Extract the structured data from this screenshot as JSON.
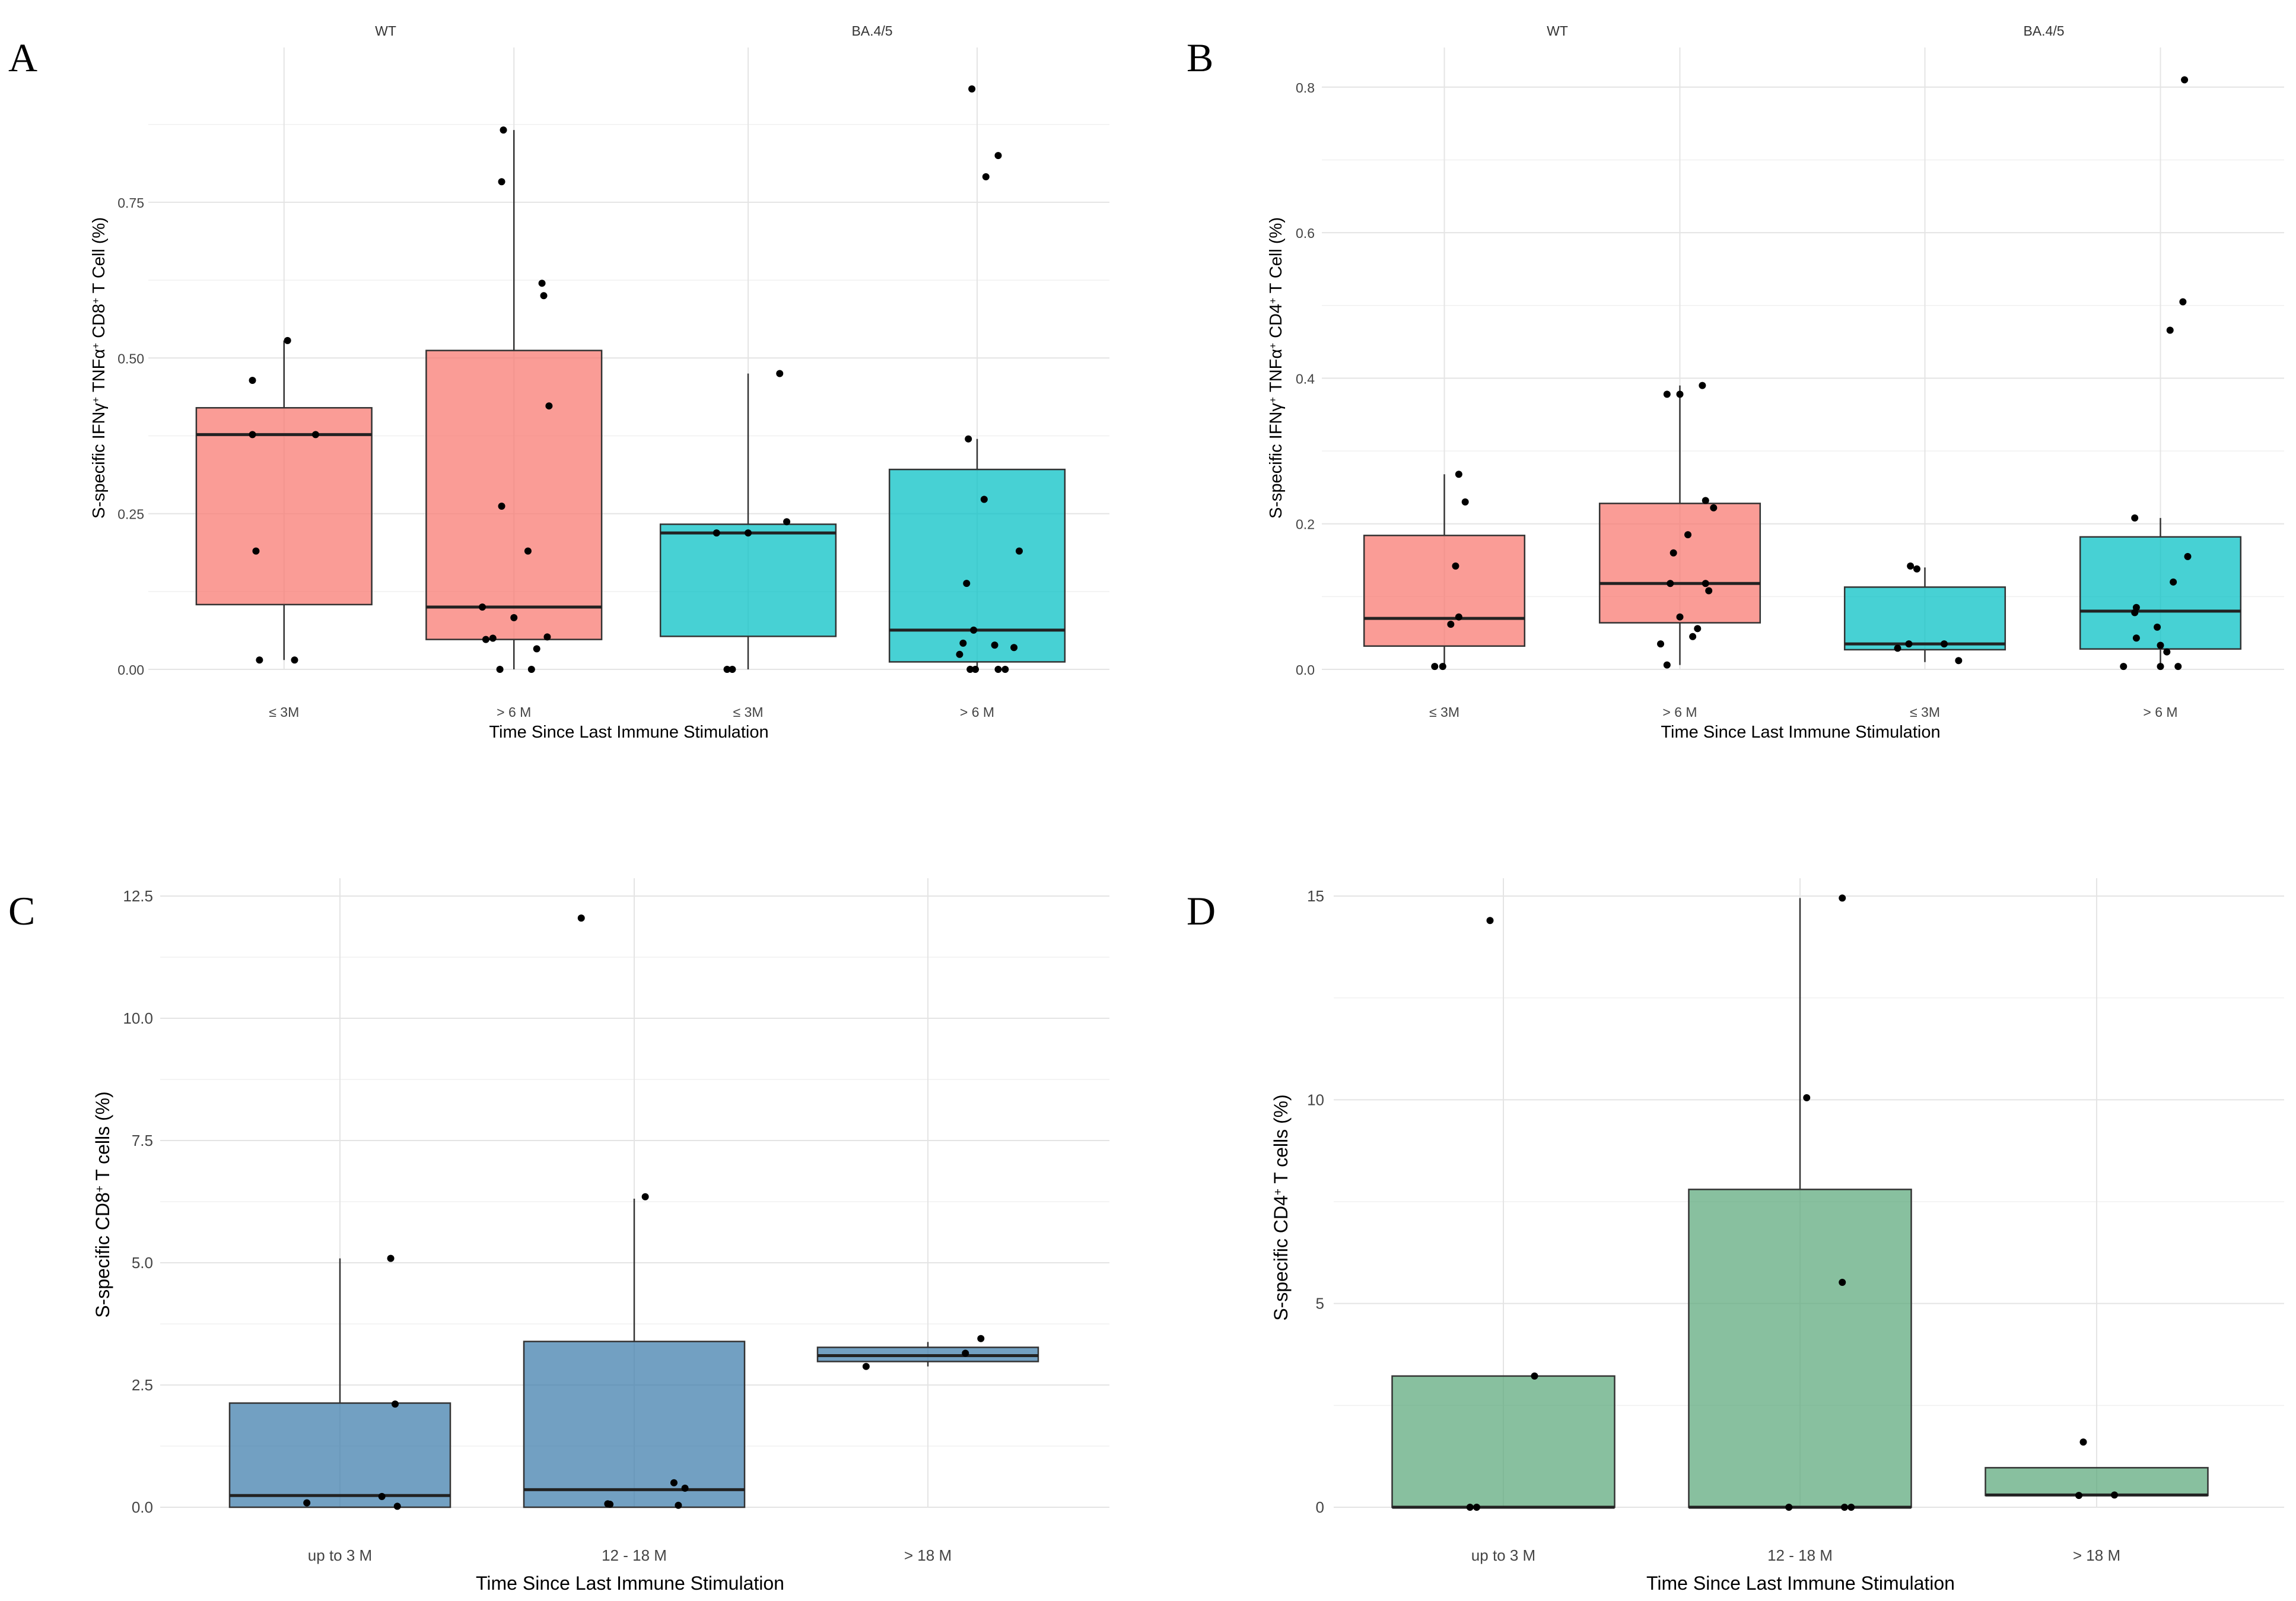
{
  "figure": {
    "xlabel": "Time Since Last Immune Stimulation"
  },
  "colors": {
    "wt": "#f8766d",
    "ba45": "#00bfc4",
    "cd8_panel_c": "#3b7bab",
    "cd4_panel_d": "#5aa77a",
    "point": "#000000",
    "median": "#222222"
  },
  "chart_data": [
    {
      "panel": "A",
      "type": "box",
      "ylabel": "S-specific IFNγ+ TNFα+ CD8+ T Cell (%)",
      "ylabel_parts": {
        "t1": "S-specific IFNγ",
        "s1": "+",
        "t2": " TNFα",
        "s2": "+",
        "t3": " CD8",
        "s3": "+",
        "t4": " T Cell (%)"
      },
      "ylim": [
        0,
        0.97
      ],
      "yticks": [
        0,
        0.25,
        0.5,
        0.75
      ],
      "ytick_labels": [
        "0.00",
        "0.25",
        "0.50",
        "0.75"
      ],
      "facets": [
        {
          "label": "WT",
          "color_key": "wt",
          "categories": [
            "≤ 3M",
            "> 6 M"
          ],
          "boxes": [
            {
              "q1": 0.104,
              "median": 0.377,
              "q3": 0.42,
              "whisker_low": 0.015,
              "whisker_high": 0.528,
              "points": [
                [
                  0.52,
                  0.528
                ],
                [
                  0.32,
                  0.464
                ],
                [
                  0.32,
                  0.377
                ],
                [
                  0.68,
                  0.377
                ],
                [
                  0.34,
                  0.19
                ],
                [
                  0.36,
                  0.015
                ],
                [
                  0.56,
                  0.015
                ]
              ]
            },
            {
              "q1": 0.048,
              "median": 0.1,
              "q3": 0.512,
              "whisker_low": 0.0,
              "whisker_high": 0.866,
              "points": [
                [
                  0.44,
                  0.866
                ],
                [
                  0.43,
                  0.783
                ],
                [
                  0.66,
                  0.62
                ],
                [
                  0.67,
                  0.6
                ],
                [
                  0.7,
                  0.423
                ],
                [
                  0.43,
                  0.262
                ],
                [
                  0.58,
                  0.19
                ],
                [
                  0.32,
                  0.1
                ],
                [
                  0.38,
                  0.05
                ],
                [
                  0.34,
                  0.048
                ],
                [
                  0.5,
                  0.083
                ],
                [
                  0.69,
                  0.052
                ],
                [
                  0.63,
                  0.033
                ],
                [
                  0.42,
                  0.0
                ],
                [
                  0.6,
                  0.0
                ]
              ]
            }
          ]
        },
        {
          "label": "BA.4/5",
          "color_key": "ba45",
          "categories": [
            "≤ 3M",
            "> 6 M"
          ],
          "boxes": [
            {
              "q1": 0.053,
              "median": 0.219,
              "q3": 0.233,
              "whisker_low": 0.0,
              "whisker_high": 0.475,
              "points": [
                [
                  0.68,
                  0.475
                ],
                [
                  0.72,
                  0.237
                ],
                [
                  0.32,
                  0.219
                ],
                [
                  0.5,
                  0.219
                ],
                [
                  0.38,
                  0.0
                ],
                [
                  0.41,
                  0.0
                ]
              ]
            },
            {
              "q1": 0.012,
              "median": 0.063,
              "q3": 0.321,
              "whisker_low": 0.0,
              "whisker_high": 0.37,
              "points": [
                [
                  0.47,
                  0.932
                ],
                [
                  0.55,
                  0.791
                ],
                [
                  0.62,
                  0.825
                ],
                [
                  0.45,
                  0.37
                ],
                [
                  0.54,
                  0.273
                ],
                [
                  0.74,
                  0.19
                ],
                [
                  0.44,
                  0.138
                ],
                [
                  0.48,
                  0.063
                ],
                [
                  0.42,
                  0.042
                ],
                [
                  0.6,
                  0.039
                ],
                [
                  0.71,
                  0.035
                ],
                [
                  0.4,
                  0.024
                ],
                [
                  0.46,
                  0.0
                ],
                [
                  0.49,
                  0.0
                ],
                [
                  0.62,
                  0.0
                ],
                [
                  0.66,
                  0.0
                ]
              ]
            }
          ]
        }
      ]
    },
    {
      "panel": "B",
      "type": "box",
      "ylabel": "S-specific IFNγ+ TNFα+ CD4+ T Cell (%)",
      "ylabel_parts": {
        "t1": "S-specific IFNγ",
        "s1": "+",
        "t2": " TNFα",
        "s2": "+",
        "t3": " CD4",
        "s3": "+",
        "t4": " T Cell (%)"
      },
      "ylim": [
        0,
        0.83
      ],
      "yticks": [
        0,
        0.2,
        0.4,
        0.6,
        0.8
      ],
      "ytick_labels": [
        "0.0",
        "0.2",
        "0.4",
        "0.6",
        "0.8"
      ],
      "facets": [
        {
          "label": "WT",
          "color_key": "wt",
          "categories": [
            "≤ 3M",
            "> 6 M"
          ],
          "boxes": [
            {
              "q1": 0.032,
              "median": 0.07,
              "q3": 0.184,
              "whisker_low": 0.0,
              "whisker_high": 0.268,
              "points": [
                [
                  0.59,
                  0.268
                ],
                [
                  0.63,
                  0.23
                ],
                [
                  0.57,
                  0.142
                ],
                [
                  0.59,
                  0.072
                ],
                [
                  0.54,
                  0.062
                ],
                [
                  0.44,
                  0.004
                ],
                [
                  0.49,
                  0.004
                ]
              ]
            },
            {
              "q1": 0.064,
              "median": 0.118,
              "q3": 0.228,
              "whisker_low": 0.006,
              "whisker_high": 0.39,
              "points": [
                [
                  0.64,
                  0.39
                ],
                [
                  0.42,
                  0.378
                ],
                [
                  0.5,
                  0.378
                ],
                [
                  0.66,
                  0.232
                ],
                [
                  0.71,
                  0.222
                ],
                [
                  0.55,
                  0.185
                ],
                [
                  0.46,
                  0.16
                ],
                [
                  0.44,
                  0.118
                ],
                [
                  0.66,
                  0.118
                ],
                [
                  0.68,
                  0.108
                ],
                [
                  0.5,
                  0.072
                ],
                [
                  0.61,
                  0.056
                ],
                [
                  0.38,
                  0.035
                ],
                [
                  0.58,
                  0.045
                ],
                [
                  0.42,
                  0.006
                ]
              ]
            }
          ]
        },
        {
          "label": "BA.4/5",
          "color_key": "ba45",
          "categories": [
            "≤ 3M",
            "> 6 M"
          ],
          "boxes": [
            {
              "q1": 0.027,
              "median": 0.035,
              "q3": 0.113,
              "whisker_low": 0.01,
              "whisker_high": 0.14,
              "points": [
                [
                  0.41,
                  0.142
                ],
                [
                  0.45,
                  0.138
                ],
                [
                  0.4,
                  0.035
                ],
                [
                  0.62,
                  0.035
                ],
                [
                  0.33,
                  0.029
                ],
                [
                  0.71,
                  0.012
                ]
              ]
            },
            {
              "q1": 0.028,
              "median": 0.08,
              "q3": 0.182,
              "whisker_low": 0.004,
              "whisker_high": 0.208,
              "points": [
                [
                  0.65,
                  0.81
                ],
                [
                  0.64,
                  0.505
                ],
                [
                  0.56,
                  0.466
                ],
                [
                  0.34,
                  0.208
                ],
                [
                  0.67,
                  0.155
                ],
                [
                  0.58,
                  0.12
                ],
                [
                  0.35,
                  0.085
                ],
                [
                  0.34,
                  0.078
                ],
                [
                  0.48,
                  0.058
                ],
                [
                  0.35,
                  0.043
                ],
                [
                  0.5,
                  0.033
                ],
                [
                  0.54,
                  0.024
                ],
                [
                  0.61,
                  0.004
                ],
                [
                  0.27,
                  0.004
                ],
                [
                  0.5,
                  0.004
                ]
              ]
            }
          ]
        }
      ]
    },
    {
      "panel": "C",
      "type": "box",
      "ylabel": "S-specific CD8+ T cells (%)",
      "ylabel_parts": {
        "t1": "S-specific CD8",
        "s1": "+",
        "t2": " T cells (%)"
      },
      "ylim": [
        0,
        12.5
      ],
      "yticks": [
        0,
        2.5,
        5,
        7.5,
        10,
        12.5
      ],
      "ytick_labels": [
        "0.0",
        "2.5",
        "5.0",
        "7.5",
        "10.0",
        "12.5"
      ],
      "color_key": "cd8_panel_c",
      "categories": [
        "up to 3 M",
        "12 - 18 M",
        "> 18 M"
      ],
      "boxes": [
        {
          "q1": 0.0,
          "median": 0.24,
          "q3": 2.13,
          "whisker_low": 0.0,
          "whisker_high": 5.09,
          "points": [
            [
              0.73,
              5.09
            ],
            [
              0.75,
              2.11
            ],
            [
              0.35,
              0.09
            ],
            [
              0.69,
              0.22
            ],
            [
              0.76,
              0.02
            ]
          ]
        },
        {
          "q1": 0.0,
          "median": 0.36,
          "q3": 3.39,
          "whisker_low": 0.0,
          "whisker_high": 6.31,
          "points": [
            [
              0.26,
              12.05
            ],
            [
              0.55,
              6.35
            ],
            [
              0.68,
              0.5
            ],
            [
              0.73,
              0.39
            ],
            [
              0.38,
              0.07
            ],
            [
              0.39,
              0.06
            ],
            [
              0.7,
              0.04
            ]
          ]
        },
        {
          "q1": 2.98,
          "median": 3.1,
          "q3": 3.27,
          "whisker_low": 2.88,
          "whisker_high": 3.38,
          "points": [
            [
              0.74,
              3.45
            ],
            [
              0.22,
              2.88
            ],
            [
              0.67,
              3.15
            ]
          ]
        }
      ]
    },
    {
      "panel": "D",
      "type": "box",
      "ylabel": "S-specific CD4+ T cells (%)",
      "ylabel_parts": {
        "t1": "S-specific CD4",
        "s1": "+",
        "t2": " T cells (%)"
      },
      "ylim": [
        0,
        15
      ],
      "yticks": [
        0,
        5,
        10,
        15
      ],
      "ytick_labels": [
        "0",
        "5",
        "10",
        "15"
      ],
      "color_key": "cd4_panel_d",
      "categories": [
        "up to 3 M",
        "12 - 18 M",
        "> 18 M"
      ],
      "boxes": [
        {
          "q1": 0.0,
          "median": 0.0,
          "q3": 3.22,
          "whisker_low": 0.0,
          "whisker_high": 3.22,
          "points": [
            [
              0.44,
              14.4
            ],
            [
              0.64,
              3.22
            ],
            [
              0.35,
              0.0
            ],
            [
              0.38,
              0.0
            ]
          ]
        },
        {
          "q1": 0.0,
          "median": 0.0,
          "q3": 7.8,
          "whisker_low": 0.0,
          "whisker_high": 14.95,
          "points": [
            [
              0.69,
              14.95
            ],
            [
              0.53,
              10.05
            ],
            [
              0.69,
              5.52
            ],
            [
              0.45,
              0.0
            ],
            [
              0.7,
              0.0
            ],
            [
              0.73,
              0.0
            ]
          ]
        },
        {
          "q1": 0.29,
          "median": 0.3,
          "q3": 0.97,
          "whisker_low": 0.29,
          "whisker_high": 0.97,
          "points": [
            [
              0.44,
              1.6
            ],
            [
              0.42,
              0.29
            ],
            [
              0.58,
              0.3
            ]
          ]
        }
      ]
    }
  ]
}
